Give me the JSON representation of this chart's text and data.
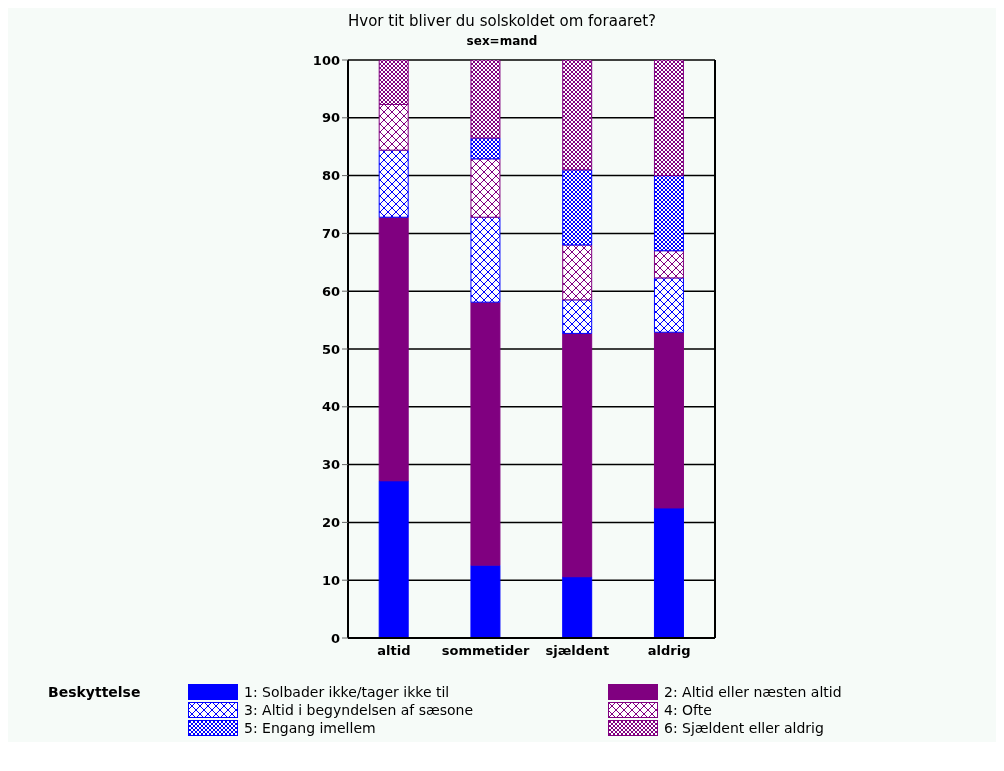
{
  "chart_data": {
    "type": "bar",
    "title": "Hvor tit bliver du solskoldet om foraaret?",
    "subtitle": "sex=mand",
    "legend_title": "Beskyttelse",
    "categories": [
      "altid",
      "sommetider",
      "sjældent",
      "aldrig"
    ],
    "stacked": true,
    "ylim": [
      0,
      100
    ],
    "yticks": [
      0,
      10,
      20,
      30,
      40,
      50,
      60,
      70,
      80,
      90,
      100
    ],
    "grid": "y",
    "legend": "bottom",
    "series": [
      {
        "name": "1: Solbader ikke/tager ikke til",
        "color": "#0000ff",
        "values": [
          27.2,
          12.6,
          10.6,
          22.5
        ]
      },
      {
        "name": "2: Altid eller næsten altid",
        "color": "#800080",
        "values": [
          45.6,
          45.5,
          42.1,
          30.4
        ]
      },
      {
        "name": "3: Altid i begyndelsen af sæsone",
        "color": "#0000ff",
        "values": [
          11.6,
          14.7,
          5.8,
          9.4
        ]
      },
      {
        "name": "4: Ofte",
        "color": "#800080",
        "values": [
          7.9,
          10.1,
          9.5,
          4.7
        ]
      },
      {
        "name": "5: Engang imellem",
        "color": "#0000ff",
        "values": [
          0,
          3.6,
          13,
          13
        ]
      },
      {
        "name": "6: Sjældent eller aldrig",
        "color": "#800080",
        "values": [
          7.7,
          13.5,
          19,
          20
        ]
      }
    ]
  }
}
